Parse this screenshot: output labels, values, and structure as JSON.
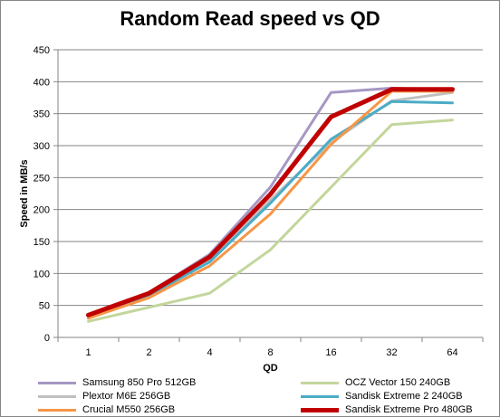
{
  "chart_data": {
    "type": "line",
    "title": "Random Read speed vs QD",
    "xlabel": "QD",
    "ylabel": "Speed in MB/s",
    "categories": [
      "1",
      "2",
      "4",
      "8",
      "16",
      "32",
      "64"
    ],
    "ylim": [
      0,
      450
    ],
    "yticks": [
      0,
      50,
      100,
      150,
      200,
      250,
      300,
      350,
      400,
      450
    ],
    "grid": true,
    "legend_position": "bottom",
    "series": [
      {
        "name": "Samsung 850 Pro 512GB",
        "color": "#a697c4",
        "values": [
          35,
          70,
          130,
          235,
          383,
          390,
          387
        ]
      },
      {
        "name": "OCZ Vector 150 240GB",
        "color": "#c3d69b",
        "values": [
          25,
          47,
          69,
          137,
          235,
          333,
          340
        ]
      },
      {
        "name": "Plextor M6E 256GB",
        "color": "#c0c0c0",
        "values": [
          30,
          64,
          120,
          215,
          305,
          370,
          383
        ]
      },
      {
        "name": "Sandisk Extreme 2 240GB",
        "color": "#4bacc6",
        "values": [
          33,
          66,
          118,
          210,
          310,
          369,
          367
        ]
      },
      {
        "name": "Crucial M550 256GB",
        "color": "#f79646",
        "values": [
          30,
          62,
          112,
          193,
          302,
          385,
          385
        ]
      },
      {
        "name": "Sandisk Extreme Pro 480GB",
        "color": "#c00000",
        "values": [
          35,
          69,
          126,
          224,
          345,
          388,
          388
        ]
      }
    ]
  }
}
